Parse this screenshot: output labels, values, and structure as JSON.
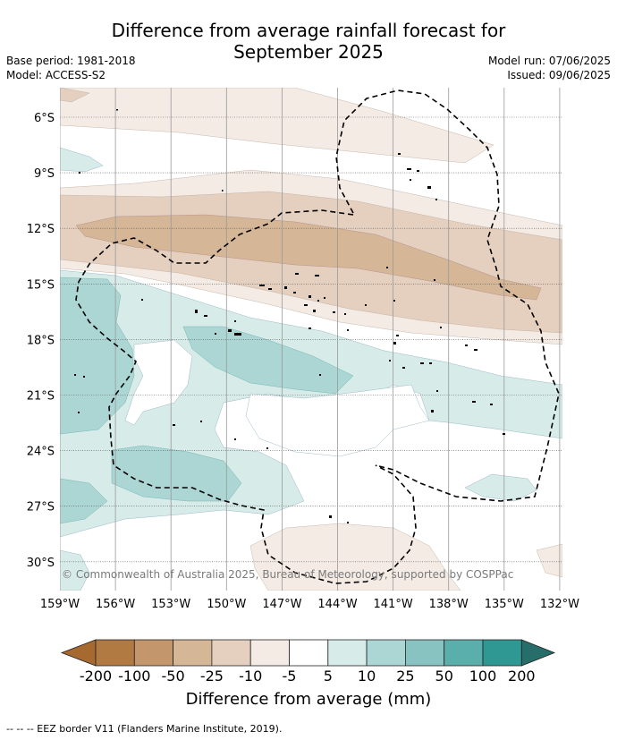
{
  "title_line1": "Difference from average rainfall forecast for",
  "title_line2": "September 2025",
  "meta": {
    "base_period": "Base period: 1981-2018",
    "model": "Model: ACCESS-S2",
    "model_run": "Model run: 07/06/2025",
    "issued": "Issued: 09/06/2025"
  },
  "lat_labels": [
    "6°S",
    "9°S",
    "12°S",
    "15°S",
    "18°S",
    "21°S",
    "24°S",
    "27°S",
    "30°S"
  ],
  "lon_labels": [
    "159°W",
    "156°W",
    "153°W",
    "150°W",
    "147°W",
    "144°W",
    "141°W",
    "138°W",
    "135°W",
    "132°W"
  ],
  "copyright": "© Commonwealth of Australia 2025, Bureau of Meteorology, supported by COSPPac",
  "colorbar": {
    "labels": [
      "-200",
      "-100",
      "-50",
      "-25",
      "-10",
      "-5",
      "5",
      "10",
      "25",
      "50",
      "100",
      "200"
    ],
    "colors": [
      "#a66a31",
      "#b07a42",
      "#c4966c",
      "#d5b696",
      "#e5d0bf",
      "#f4ebe5",
      "#ffffff",
      "#d7ebe9",
      "#acd6d4",
      "#88c3c1",
      "#5aaeac",
      "#2f9893",
      "#276e6b"
    ],
    "title": "Difference from average (mm)"
  },
  "legend_footer": "--  --  -- EEZ border V11 (Flanders Marine Institute, 2019)."
}
